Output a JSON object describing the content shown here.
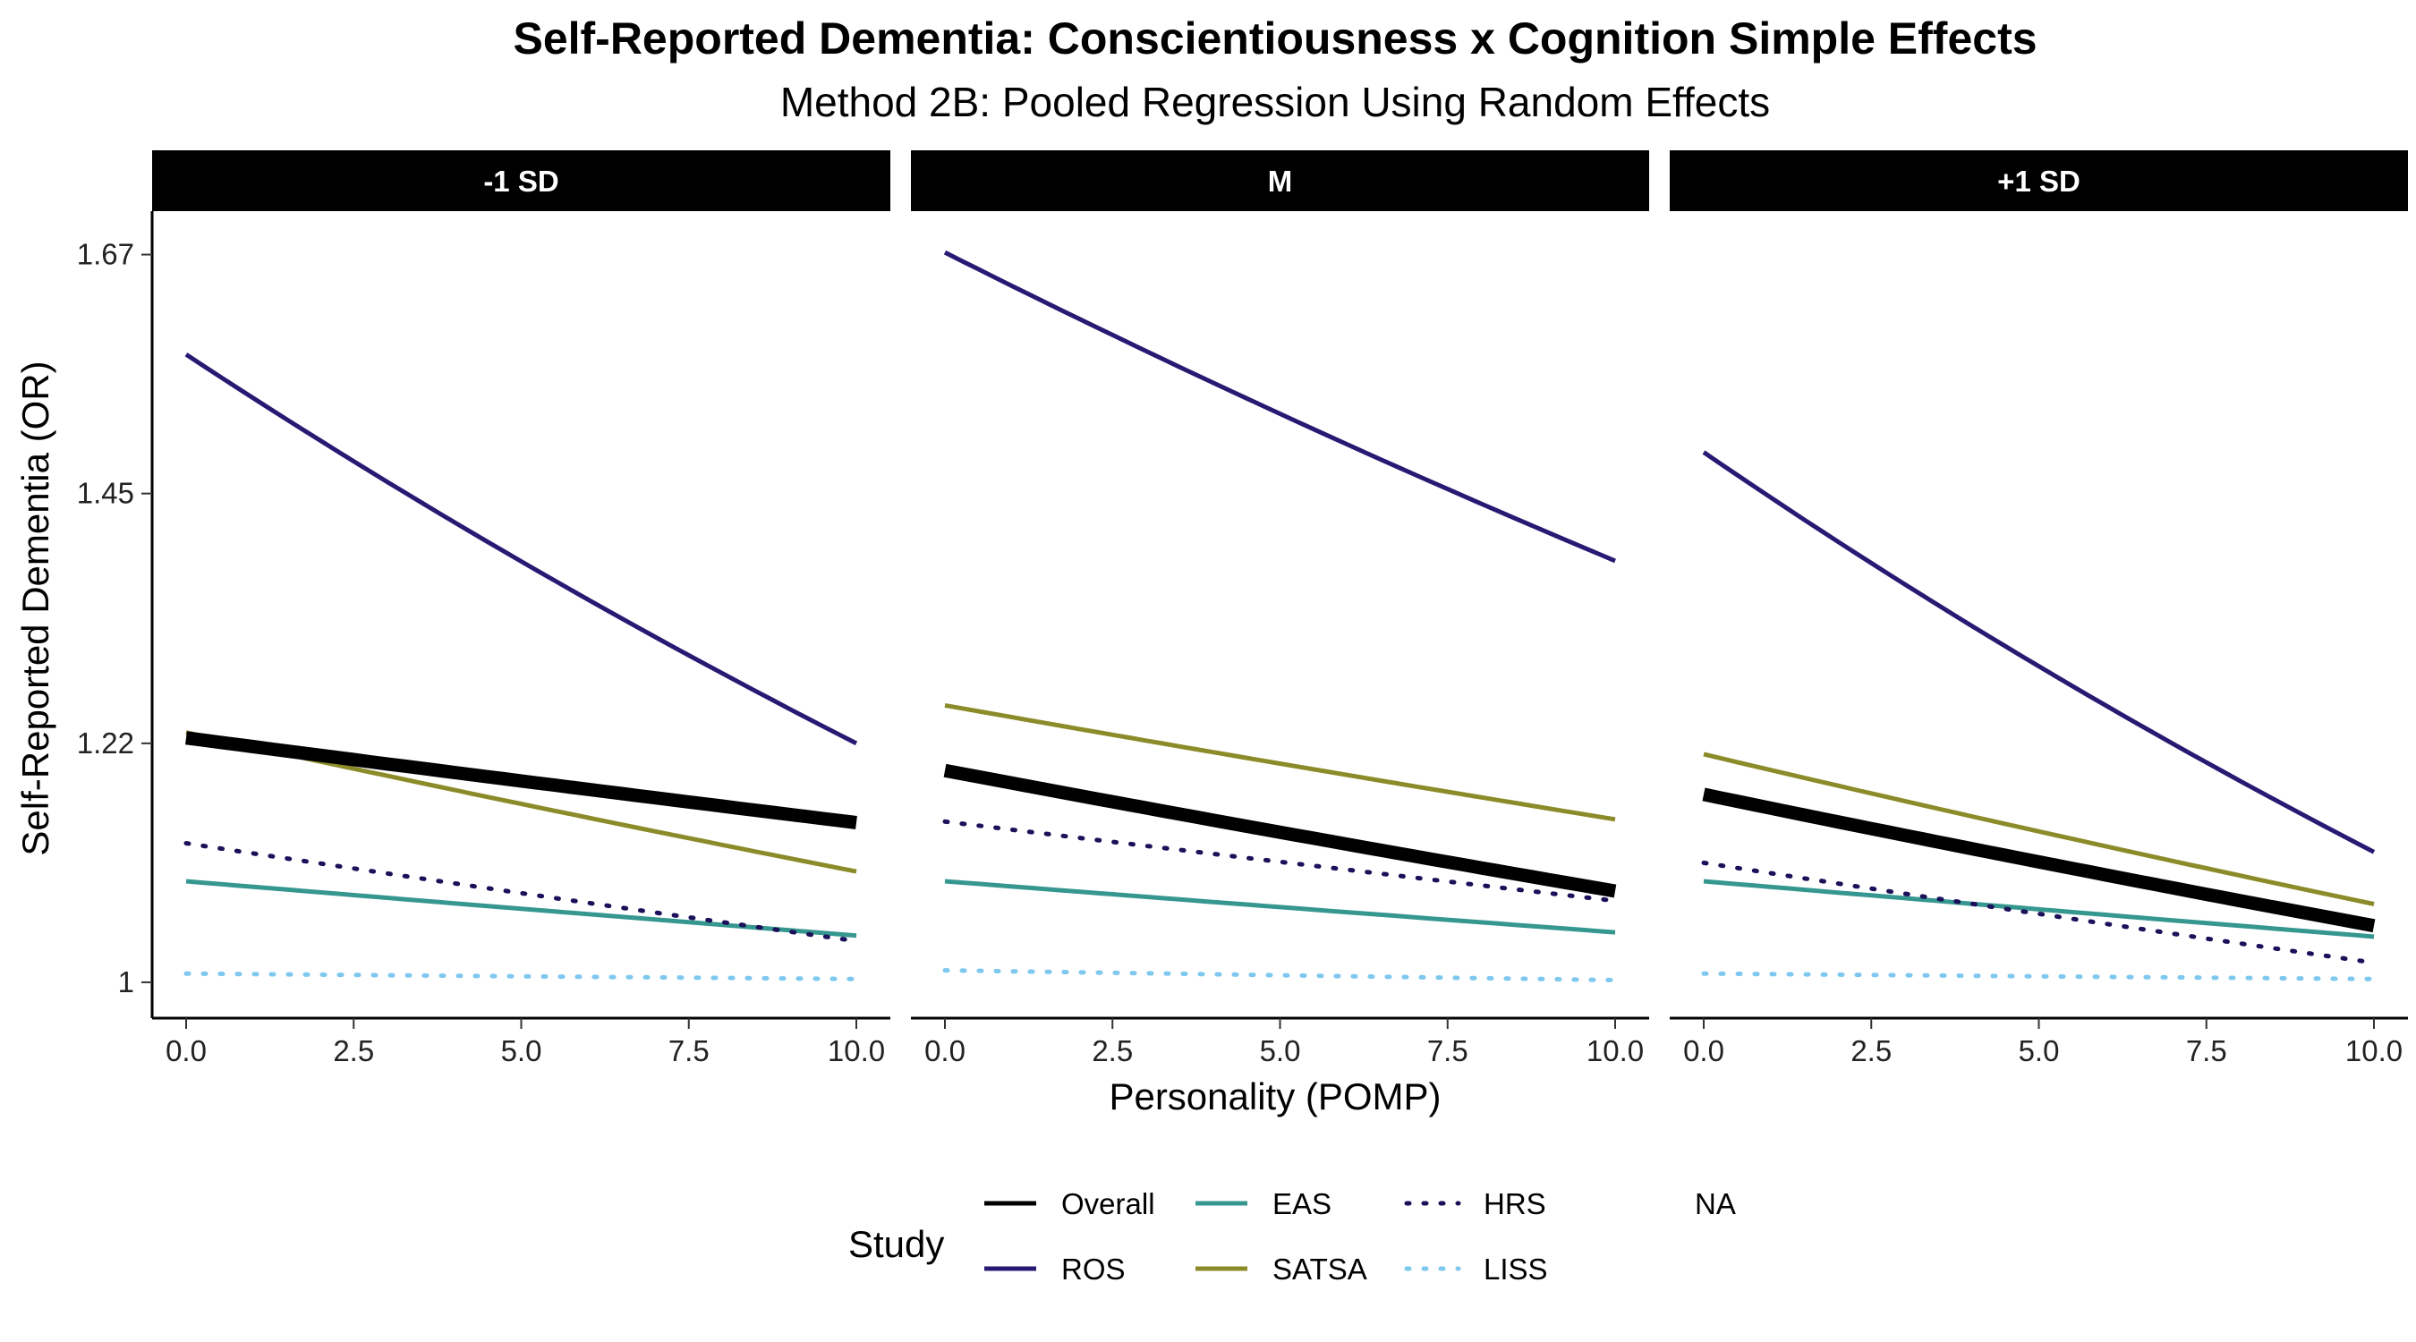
{
  "chart_data": {
    "type": "line",
    "title": "Self-Reported Dementia: Conscientiousness x Cognition Simple Effects",
    "subtitle": "Method 2B: Pooled Regression Using Random Effects",
    "xlabel": "Personality (POMP)",
    "ylabel": "Self-Reported Dementia (OR)",
    "xlim": [
      0,
      10
    ],
    "ylim": [
      0.967,
      1.71
    ],
    "x_ticks": [
      0,
      2.5,
      5,
      7.5,
      10
    ],
    "x_tick_labels": [
      "0.0",
      "2.5",
      "5.0",
      "7.5",
      "10.0"
    ],
    "y_ticks": [
      1,
      1.22,
      1.45,
      1.67
    ],
    "y_tick_labels": [
      "1",
      "1.22",
      "1.45",
      "1.67"
    ],
    "legend": {
      "title": "Study",
      "placement": "bottom",
      "entries": [
        "Overall",
        "ROS",
        "EAS",
        "SATSA",
        "HRS",
        "LISS",
        "NA"
      ]
    },
    "series_styles": {
      "Overall": {
        "color": "#000000",
        "dash": "solid",
        "weight": "thick"
      },
      "ROS": {
        "color": "#261a73",
        "dash": "solid",
        "weight": "normal"
      },
      "EAS": {
        "color": "#35978f",
        "dash": "solid",
        "weight": "normal"
      },
      "SATSA": {
        "color": "#8b8b2a",
        "dash": "solid",
        "weight": "normal"
      },
      "HRS": {
        "color": "#1b1059",
        "dash": "dotted",
        "weight": "normal"
      },
      "LISS": {
        "color": "#7ec8ef",
        "dash": "dotted",
        "weight": "normal"
      }
    },
    "panels": [
      {
        "label": "-1 SD",
        "x": [
          0,
          10
        ],
        "series": [
          {
            "name": "Overall",
            "y": [
              1.225,
              1.147
            ]
          },
          {
            "name": "ROS",
            "y": [
              1.578,
              1.22
            ]
          },
          {
            "name": "EAS",
            "y": [
              1.093,
              1.043
            ]
          },
          {
            "name": "SATSA",
            "y": [
              1.23,
              1.102
            ]
          },
          {
            "name": "HRS",
            "y": [
              1.128,
              1.038
            ]
          },
          {
            "name": "LISS",
            "y": [
              1.008,
              1.003
            ]
          }
        ]
      },
      {
        "label": "M",
        "x": [
          0,
          10
        ],
        "series": [
          {
            "name": "Overall",
            "y": [
              1.195,
              1.084
            ]
          },
          {
            "name": "ROS",
            "y": [
              1.672,
              1.388
            ]
          },
          {
            "name": "EAS",
            "y": [
              1.093,
              1.046
            ]
          },
          {
            "name": "SATSA",
            "y": [
              1.255,
              1.15
            ]
          },
          {
            "name": "HRS",
            "y": [
              1.148,
              1.075
            ]
          },
          {
            "name": "LISS",
            "y": [
              1.011,
              1.002
            ]
          }
        ]
      },
      {
        "label": "+1 SD",
        "x": [
          0,
          10
        ],
        "series": [
          {
            "name": "Overall",
            "y": [
              1.173,
              1.052
            ]
          },
          {
            "name": "ROS",
            "y": [
              1.488,
              1.12
            ]
          },
          {
            "name": "EAS",
            "y": [
              1.093,
              1.042
            ]
          },
          {
            "name": "SATSA",
            "y": [
              1.21,
              1.072
            ]
          },
          {
            "name": "HRS",
            "y": [
              1.11,
              1.018
            ]
          },
          {
            "name": "LISS",
            "y": [
              1.008,
              1.003
            ]
          }
        ]
      }
    ]
  }
}
